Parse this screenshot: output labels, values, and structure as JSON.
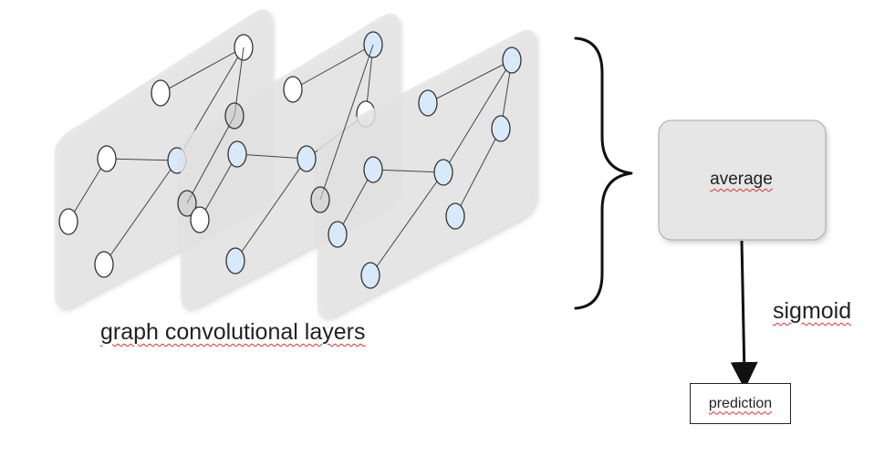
{
  "diagram": {
    "layers_caption": "graph convolutional layers",
    "average_label": "average",
    "activation_label": "sigmoid",
    "output_label": "prediction"
  },
  "colors": {
    "panel_fill": "#e4e4e4",
    "node_white": "#ffffff",
    "node_blue": "#d8eafa",
    "node_stroke": "#333333",
    "edge": "#444444",
    "average_box_fill": "#e6e6e6",
    "arrow": "#111111"
  },
  "layers": [
    {
      "name": "layer-1",
      "node_colors": [
        "white",
        "white",
        "white",
        "blue",
        "white",
        "white"
      ]
    },
    {
      "name": "layer-2",
      "node_colors": [
        "blue",
        "white",
        "white",
        "blue",
        "blue",
        "white",
        "blue"
      ]
    },
    {
      "name": "layer-3",
      "node_colors": [
        "blue",
        "blue",
        "blue",
        "blue",
        "blue",
        "blue",
        "blue",
        "blue"
      ]
    }
  ]
}
